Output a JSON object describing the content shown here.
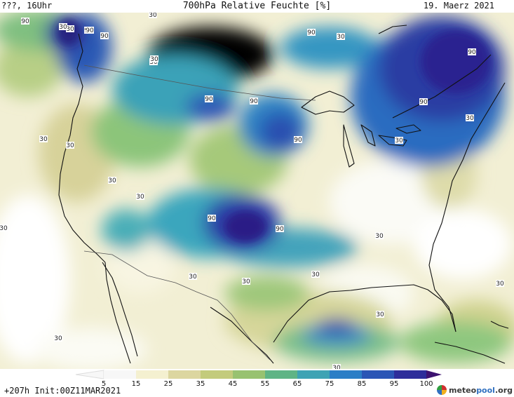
{
  "header": {
    "left": "???, 16Uhr",
    "title": "700hPa Relative Feuchte [%]",
    "date": "19. Maerz 2021"
  },
  "map_labels": [
    "90",
    "90",
    "90",
    "90",
    "90",
    "90",
    "90",
    "90",
    "90",
    "90",
    "90",
    "90",
    "30",
    "30",
    "30",
    "30",
    "30",
    "30",
    "30",
    "30",
    "30",
    "30",
    "30",
    "30",
    "30",
    "30",
    "30",
    "30",
    "30",
    "30",
    "30",
    "30",
    "30"
  ],
  "colorbar": {
    "ticks": [
      "5",
      "15",
      "25",
      "35",
      "45",
      "55",
      "65",
      "75",
      "85",
      "95",
      "100"
    ],
    "colors": [
      "#f7f7f7",
      "#f4f0d0",
      "#dcd6a0",
      "#c3cb7c",
      "#98c270",
      "#5fb485",
      "#3ea3b4",
      "#2b7ec6",
      "#2a55b5",
      "#2d2d9a",
      "#3d1270"
    ]
  },
  "footer": {
    "init": "+207h Init:00Z11MAR2021",
    "logo_text_a": "meteo",
    "logo_text_b": "pool",
    "logo_text_c": ".org"
  }
}
